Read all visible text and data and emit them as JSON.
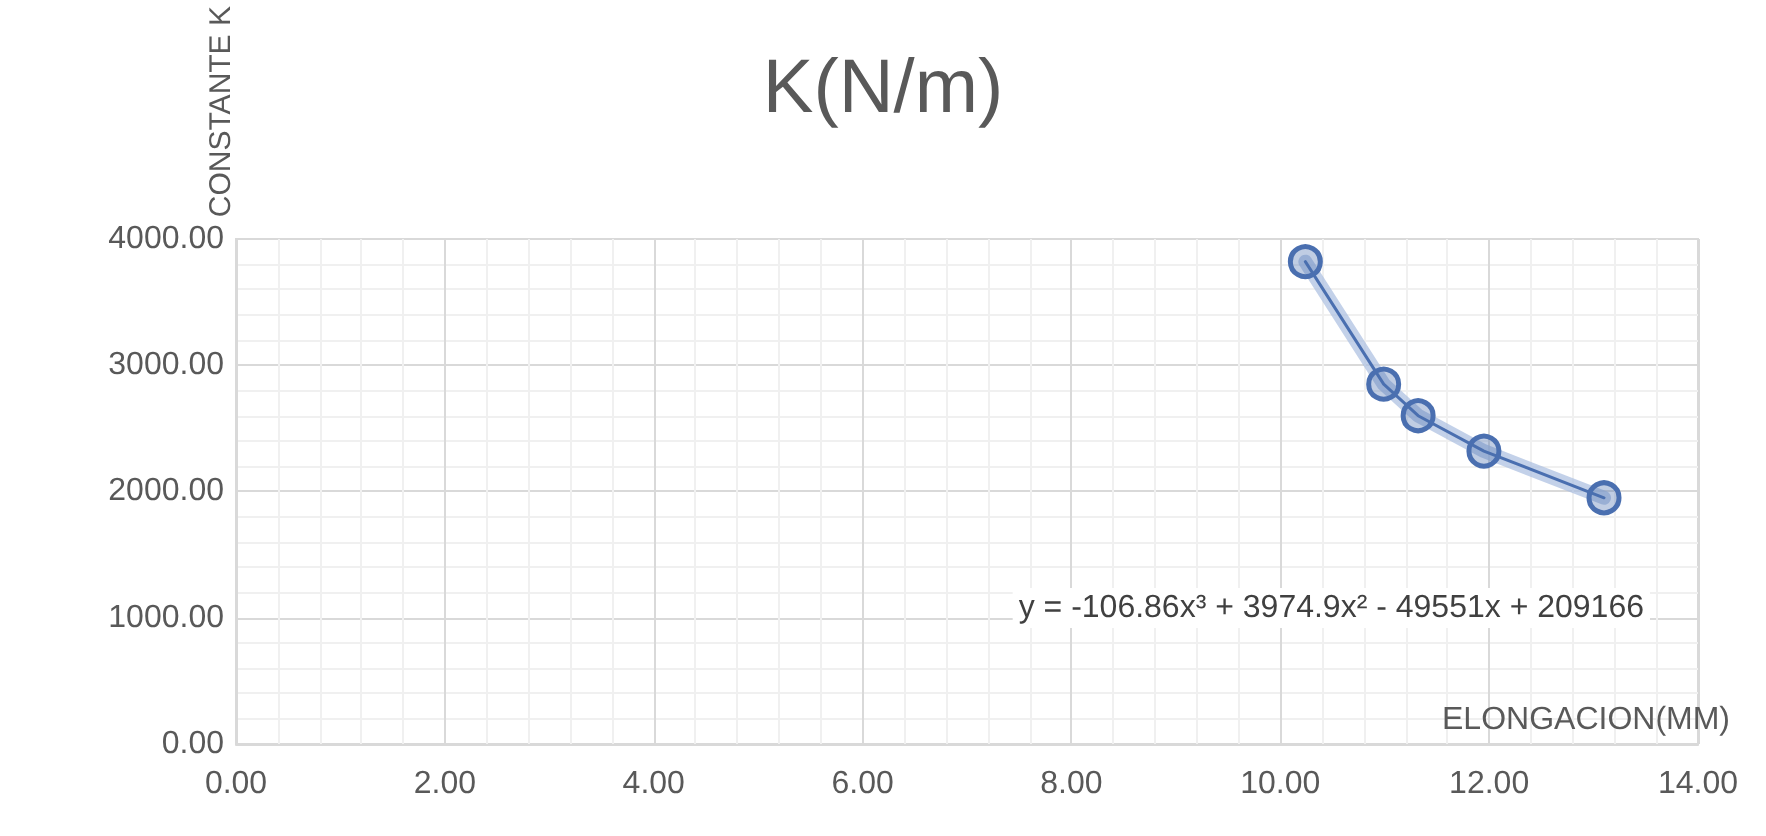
{
  "chart_data": {
    "type": "line",
    "title": "K(N/m)",
    "xlabel": "ELONGACION(MM)",
    "ylabel": "CONSTANTE K",
    "annotations": [
      "y = -106.86x³ + 3974.9x² - 49551x + 209166"
    ],
    "series": [
      {
        "color": "#a9bde0",
        "x": [
          10.24,
          10.99,
          11.32,
          11.95,
          13.1
        ],
        "values": [
          3820,
          2850,
          2600,
          2320,
          1950
        ],
        "marker": "none"
      },
      {
        "color": "#4a6fb0",
        "x": [
          10.24,
          10.99,
          11.32,
          11.95,
          13.1
        ],
        "values": [
          3820,
          2850,
          2600,
          2320,
          1950
        ],
        "marker": "circle"
      }
    ],
    "xlim": [
      0,
      14
    ],
    "xticks": [
      {
        "value": 0,
        "label": "0.00"
      },
      {
        "value": 2,
        "label": "2.00"
      },
      {
        "value": 4,
        "label": "4.00"
      },
      {
        "value": 6,
        "label": "6.00"
      },
      {
        "value": 8,
        "label": "8.00"
      },
      {
        "value": 10,
        "label": "10.00"
      },
      {
        "value": 12,
        "label": "12.00"
      },
      {
        "value": 14,
        "label": "14.00"
      }
    ],
    "ylim": [
      0,
      4000
    ],
    "yticks": [
      {
        "value": 0,
        "label": "0.00"
      },
      {
        "value": 1000,
        "label": "1000.00"
      },
      {
        "value": 2000,
        "label": "2000.00"
      },
      {
        "value": 3000,
        "label": "3000.00"
      },
      {
        "value": 4000,
        "label": "4000.00"
      }
    ],
    "grid": true
  }
}
